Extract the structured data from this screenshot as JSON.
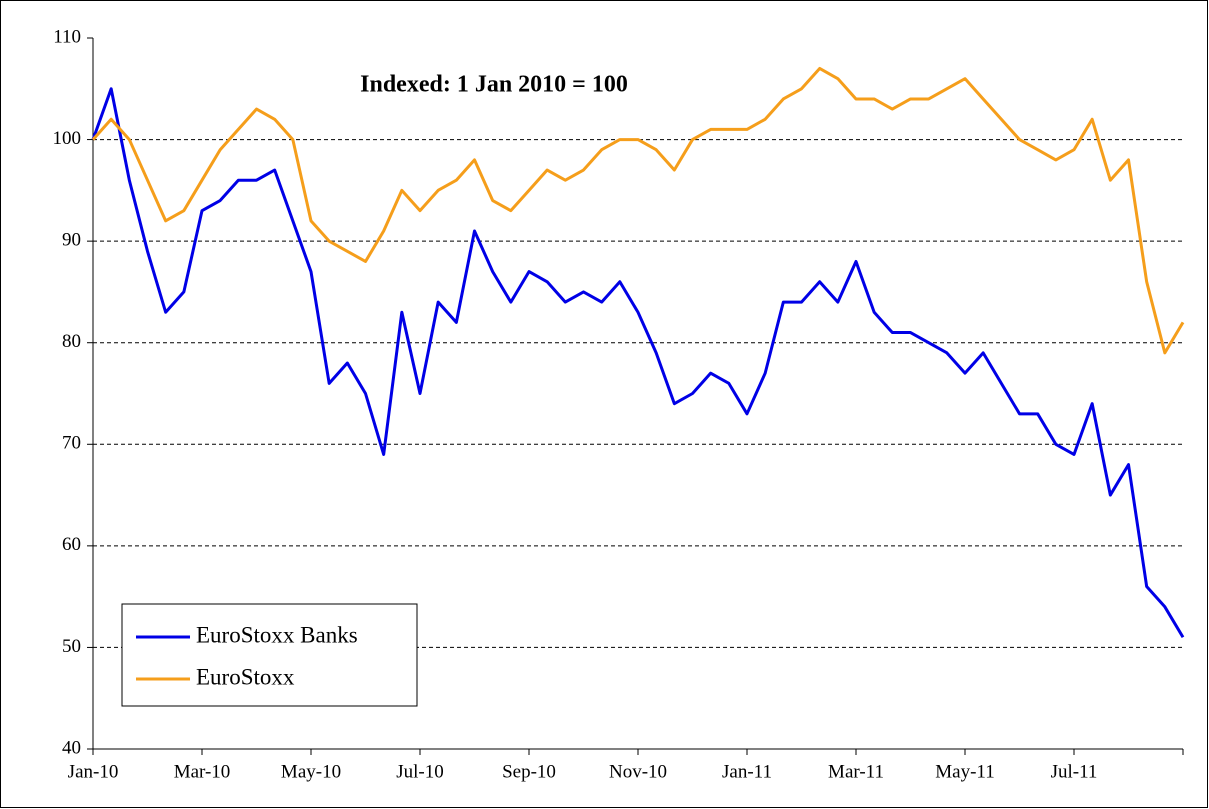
{
  "chart_data": {
    "type": "line",
    "title": "Indexed: 1 Jan 2010 = 100",
    "categories": [
      "Jan-10",
      null,
      null,
      null,
      null,
      null,
      "Mar-10",
      null,
      null,
      null,
      null,
      null,
      "May-10",
      null,
      null,
      null,
      null,
      null,
      "Jul-10",
      null,
      null,
      null,
      null,
      null,
      "Sep-10",
      null,
      null,
      null,
      null,
      null,
      "Nov-10",
      null,
      null,
      null,
      null,
      null,
      "Jan-11",
      null,
      null,
      null,
      null,
      null,
      "Mar-11",
      null,
      null,
      null,
      null,
      null,
      "May-11",
      null,
      null,
      null,
      null,
      null,
      "Jul-11",
      null,
      null,
      null,
      null,
      null,
      null
    ],
    "series": [
      {
        "name": "EuroStoxx Banks",
        "color": "#0000e6",
        "values": [
          100,
          105,
          96,
          89,
          83,
          85,
          93,
          94,
          96,
          96,
          97,
          92,
          87,
          76,
          78,
          75,
          69,
          83,
          75,
          84,
          82,
          91,
          87,
          84,
          87,
          86,
          84,
          85,
          84,
          86,
          83,
          79,
          74,
          75,
          77,
          76,
          73,
          77,
          84,
          84,
          86,
          84,
          88,
          83,
          81,
          81,
          80,
          79,
          77,
          79,
          76,
          73,
          73,
          70,
          69,
          74,
          65,
          68,
          56,
          54,
          51
        ]
      },
      {
        "name": "EuroStoxx",
        "color": "#f59e1b",
        "values": [
          100,
          102,
          100,
          96,
          92,
          93,
          96,
          99,
          101,
          103,
          102,
          100,
          92,
          90,
          89,
          88,
          91,
          95,
          93,
          95,
          96,
          98,
          94,
          93,
          95,
          97,
          96,
          97,
          99,
          100,
          100,
          99,
          97,
          100,
          101,
          101,
          101,
          102,
          104,
          105,
          107,
          106,
          104,
          104,
          103,
          104,
          104,
          105,
          106,
          104,
          102,
          100,
          99,
          98,
          99,
          102,
          96,
          98,
          86,
          79,
          82
        ]
      }
    ],
    "ylim": [
      40,
      110
    ],
    "yticks": [
      40,
      50,
      60,
      70,
      80,
      90,
      100,
      110
    ],
    "grid": true,
    "legend": "lower left"
  }
}
